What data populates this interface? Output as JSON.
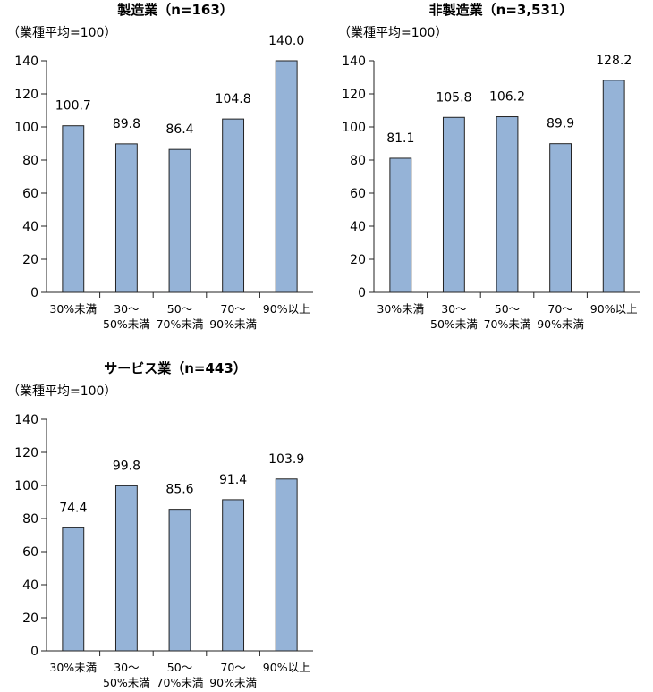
{
  "chart_data": [
    {
      "type": "bar",
      "title": "製造業（n=163）",
      "ylabel": "（業種平均=100）",
      "ylim": [
        0,
        140
      ],
      "yticks": [
        0,
        20,
        40,
        60,
        80,
        100,
        120,
        140
      ],
      "categories": [
        [
          "30%未満"
        ],
        [
          "30～",
          "50%未満"
        ],
        [
          "50～",
          "70%未満"
        ],
        [
          "70～",
          "90%未満"
        ],
        [
          "90%以上"
        ]
      ],
      "values": [
        100.7,
        89.8,
        86.4,
        104.8,
        140.0
      ],
      "value_labels": [
        "100.7",
        "89.8",
        "86.4",
        "104.8",
        "140.0"
      ],
      "colors": {
        "bar": "#95b3d7"
      }
    },
    {
      "type": "bar",
      "title": "非製造業（n=3,531）",
      "ylabel": "（業種平均=100）",
      "ylim": [
        0,
        140
      ],
      "yticks": [
        0,
        20,
        40,
        60,
        80,
        100,
        120,
        140
      ],
      "categories": [
        [
          "30%未満"
        ],
        [
          "30～",
          "50%未満"
        ],
        [
          "50～",
          "70%未満"
        ],
        [
          "70～",
          "90%未満"
        ],
        [
          "90%以上"
        ]
      ],
      "values": [
        81.1,
        105.8,
        106.2,
        89.9,
        128.2
      ],
      "value_labels": [
        "81.1",
        "105.8",
        "106.2",
        "89.9",
        "128.2"
      ],
      "colors": {
        "bar": "#95b3d7"
      }
    },
    {
      "type": "bar",
      "title": "サービス業（n=443）",
      "ylabel": "（業種平均=100）",
      "ylim": [
        0,
        140
      ],
      "yticks": [
        0,
        20,
        40,
        60,
        80,
        100,
        120,
        140
      ],
      "categories": [
        [
          "30%未満"
        ],
        [
          "30～",
          "50%未満"
        ],
        [
          "50～",
          "70%未満"
        ],
        [
          "70～",
          "90%未満"
        ],
        [
          "90%以上"
        ]
      ],
      "values": [
        74.4,
        99.8,
        85.6,
        91.4,
        103.9
      ],
      "value_labels": [
        "74.4",
        "99.8",
        "85.6",
        "91.4",
        "103.9"
      ],
      "colors": {
        "bar": "#95b3d7"
      }
    }
  ]
}
